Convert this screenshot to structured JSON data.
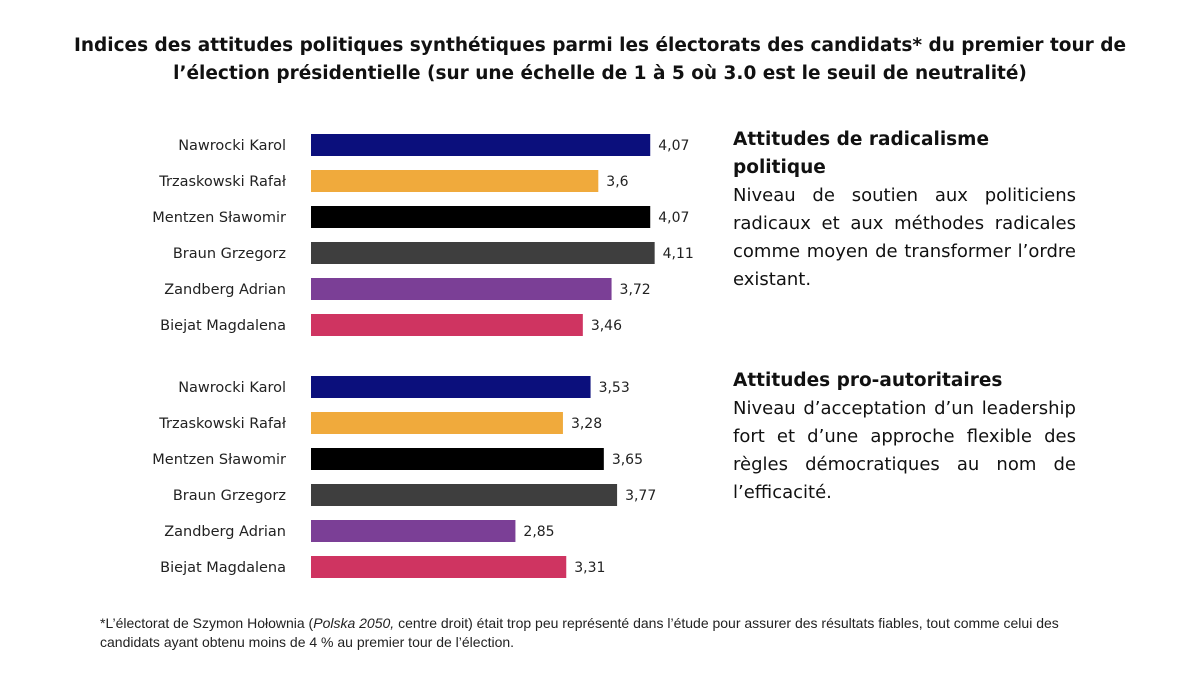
{
  "title": "Indices des attitudes politiques synthétiques parmi les électorats des candidats* du premier tour de l’élection présidentielle (sur une échelle de 1 à 5 où 3.0 est le seuil de neutralité)",
  "panels": [
    {
      "heading": "Attitudes de radicalisme politique",
      "description": "Niveau de soutien aux politiciens radicaux et aux méthodes radicales comme moyen de transformer l’ordre existant."
    },
    {
      "heading": "Attitudes pro-autoritaires",
      "description": "Niveau d’acceptation d’un leadership fort et d’une approche flexible des règles démocratiques au nom de l’efficacité."
    }
  ],
  "footnote": {
    "prefix": "*L’électorat de Szymon Hołownia (",
    "italic": "Polska 2050,",
    "suffix": " centre droit) était trop peu représenté dans l’étude pour assurer des résultats fiables, tout comme celui des candidats ayant obtenu moins de 4 % au premier tour de l’élection."
  },
  "colors": [
    "#0b0f7c",
    "#f0aa3c",
    "#000000",
    "#3e3e3e",
    "#7b3f96",
    "#cf3461"
  ],
  "chart_data": [
    {
      "type": "bar",
      "orientation": "horizontal",
      "title": "Attitudes de radicalisme politique",
      "categories": [
        "Nawrocki Karol",
        "Trzaskowski Rafał",
        "Mentzen Sławomir",
        "Braun Grzegorz",
        "Zandberg Adrian",
        "Biejat Magdalena"
      ],
      "values": [
        4.07,
        3.6,
        4.07,
        4.11,
        3.72,
        3.46
      ],
      "value_labels": [
        "4,07",
        "3,6",
        "4,07",
        "4,11",
        "3,72",
        "3,46"
      ],
      "xlim": [
        1,
        5
      ],
      "grid": false
    },
    {
      "type": "bar",
      "orientation": "horizontal",
      "title": "Attitudes pro-autoritaires",
      "categories": [
        "Nawrocki Karol",
        "Trzaskowski Rafał",
        "Mentzen Sławomir",
        "Braun Grzegorz",
        "Zandberg Adrian",
        "Biejat Magdalena"
      ],
      "values": [
        3.53,
        3.28,
        3.65,
        3.77,
        2.85,
        3.31
      ],
      "value_labels": [
        "3,53",
        "3,28",
        "3,65",
        "3,77",
        "2,85",
        "3,31"
      ],
      "xlim": [
        1,
        5
      ],
      "grid": false
    }
  ]
}
